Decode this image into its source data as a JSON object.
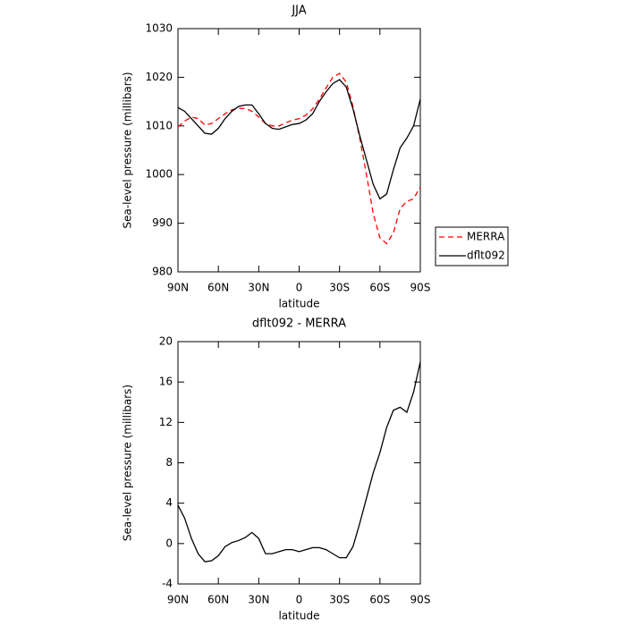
{
  "chart_data": [
    {
      "type": "line",
      "title": "JJA",
      "x_label": "latitude",
      "y_label": "Sea-level pressure (millibars)",
      "x": [
        90,
        85,
        80,
        75,
        70,
        65,
        60,
        55,
        50,
        45,
        40,
        35,
        30,
        25,
        20,
        15,
        10,
        5,
        0,
        -5,
        -10,
        -15,
        -20,
        -25,
        -30,
        -35,
        -40,
        -45,
        -50,
        -55,
        -60,
        -65,
        -70,
        -75,
        -80,
        -85,
        -90
      ],
      "series": [
        {
          "name": "MERRA",
          "color": "#ff0000",
          "style": "dashed",
          "values": [
            1009.8,
            1011,
            1011.8,
            1011.5,
            1010.2,
            1010.5,
            1011.5,
            1012.5,
            1013.3,
            1013.6,
            1013.6,
            1013,
            1011.8,
            1010.5,
            1010,
            1010,
            1010.6,
            1011.2,
            1011.5,
            1012.2,
            1013.5,
            1015.5,
            1017.8,
            1020,
            1020.8,
            1019,
            1014,
            1007.5,
            1000,
            992,
            987,
            985.8,
            988,
            993,
            994.5,
            995,
            997.5
          ]
        },
        {
          "name": "dflt092",
          "color": "#000000",
          "style": "solid",
          "values": [
            1013.8,
            1013,
            1011.5,
            1010,
            1008.5,
            1008.3,
            1009.5,
            1011.5,
            1013,
            1014,
            1014.3,
            1014.3,
            1012.5,
            1010.5,
            1009.5,
            1009.3,
            1009.8,
            1010.3,
            1010.5,
            1011.2,
            1012.5,
            1015,
            1017,
            1018.7,
            1019.5,
            1018,
            1013.5,
            1008,
            1003,
            998,
            995,
            996,
            1001,
            1005.5,
            1007.5,
            1010,
            1015.5
          ]
        }
      ],
      "xlim": [
        90,
        -90
      ],
      "xticks": [
        {
          "value": 90,
          "label": "90N"
        },
        {
          "value": 60,
          "label": "60N"
        },
        {
          "value": 30,
          "label": "30N"
        },
        0,
        {
          "value": -30,
          "label": "30S"
        },
        {
          "value": -60,
          "label": "60S"
        },
        {
          "value": -90,
          "label": "90S"
        }
      ],
      "ylim": [
        980,
        1030
      ],
      "yticks": [
        980,
        990,
        1000,
        1010,
        1020,
        1030
      ],
      "legend": "right"
    },
    {
      "type": "line",
      "title": "dflt092 - MERRA",
      "x_label": "latitude",
      "y_label": "Sea-level pressure (millibars)",
      "x": [
        90,
        85,
        80,
        75,
        70,
        65,
        60,
        55,
        50,
        45,
        40,
        35,
        30,
        25,
        20,
        15,
        10,
        5,
        0,
        -5,
        -10,
        -15,
        -20,
        -25,
        -30,
        -35,
        -40,
        -45,
        -50,
        -55,
        -60,
        -65,
        -70,
        -75,
        -80,
        -85,
        -90
      ],
      "series": [
        {
          "color": "#000000",
          "style": "solid",
          "values": [
            3.8,
            2.5,
            0.5,
            -1,
            -1.8,
            -1.7,
            -1.2,
            -0.3,
            0.1,
            0.3,
            0.6,
            1.1,
            0.5,
            -1,
            -1,
            -0.8,
            -0.6,
            -0.6,
            -0.8,
            -0.6,
            -0.4,
            -0.4,
            -0.6,
            -1,
            -1.4,
            -1.4,
            -0.3,
            2,
            4.5,
            7,
            9,
            11.5,
            13.2,
            13.5,
            13,
            15,
            18
          ]
        }
      ],
      "xlim": [
        90,
        -90
      ],
      "xticks": [
        {
          "value": 90,
          "label": "90N"
        },
        {
          "value": 60,
          "label": "60N"
        },
        {
          "value": 30,
          "label": "30N"
        },
        0,
        {
          "value": -30,
          "label": "30S"
        },
        {
          "value": -60,
          "label": "60S"
        },
        {
          "value": -90,
          "label": "90S"
        }
      ],
      "ylim": [
        -4,
        20
      ],
      "yticks": [
        -4,
        0,
        4,
        8,
        12,
        16,
        20
      ]
    }
  ]
}
